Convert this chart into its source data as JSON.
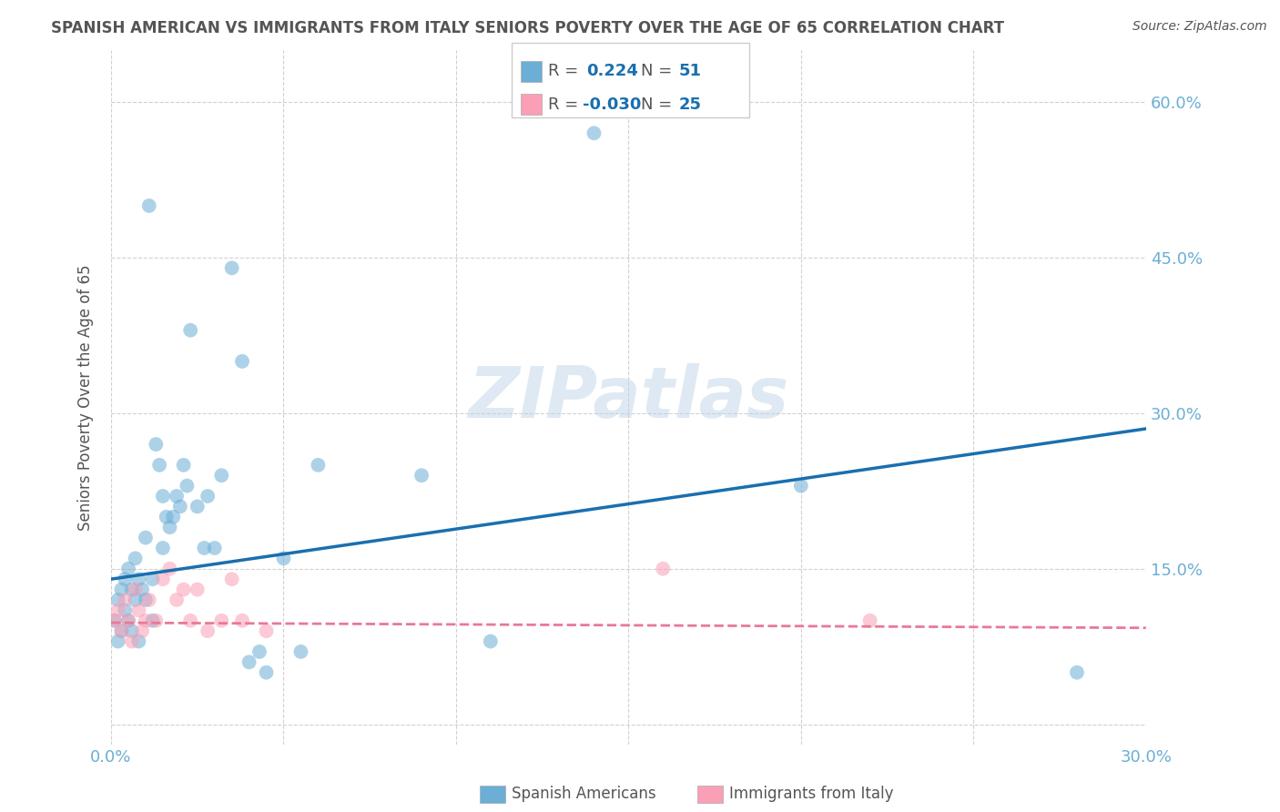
{
  "title": "SPANISH AMERICAN VS IMMIGRANTS FROM ITALY SENIORS POVERTY OVER THE AGE OF 65 CORRELATION CHART",
  "source": "Source: ZipAtlas.com",
  "ylabel": "Seniors Poverty Over the Age of 65",
  "x_min": 0.0,
  "x_max": 0.3,
  "y_min": -0.02,
  "y_max": 0.65,
  "x_ticks": [
    0.0,
    0.05,
    0.1,
    0.15,
    0.2,
    0.25,
    0.3
  ],
  "x_tick_labels": [
    "0.0%",
    "",
    "",
    "",
    "",
    "",
    "30.0%"
  ],
  "y_ticks": [
    0.0,
    0.15,
    0.3,
    0.45,
    0.6
  ],
  "y_tick_labels": [
    "",
    "15.0%",
    "30.0%",
    "45.0%",
    "60.0%"
  ],
  "background_color": "#ffffff",
  "grid_color": "#cccccc",
  "watermark_text": "ZIPatlas",
  "legend_r1": "0.224",
  "legend_n1": "51",
  "legend_r2": "-0.030",
  "legend_n2": "25",
  "blue_color": "#6baed6",
  "pink_color": "#fa9fb5",
  "line_blue": "#1a6faf",
  "line_pink": "#e87997",
  "title_color": "#555555",
  "axis_label_color": "#6baed6",
  "spanish_x": [
    0.001,
    0.002,
    0.002,
    0.003,
    0.003,
    0.004,
    0.004,
    0.005,
    0.005,
    0.006,
    0.006,
    0.007,
    0.007,
    0.008,
    0.008,
    0.009,
    0.01,
    0.01,
    0.011,
    0.012,
    0.012,
    0.013,
    0.014,
    0.015,
    0.015,
    0.016,
    0.017,
    0.018,
    0.019,
    0.02,
    0.021,
    0.022,
    0.023,
    0.025,
    0.027,
    0.028,
    0.03,
    0.032,
    0.035,
    0.038,
    0.04,
    0.043,
    0.045,
    0.05,
    0.055,
    0.06,
    0.09,
    0.11,
    0.14,
    0.2,
    0.28
  ],
  "spanish_y": [
    0.1,
    0.12,
    0.08,
    0.13,
    0.09,
    0.14,
    0.11,
    0.15,
    0.1,
    0.13,
    0.09,
    0.16,
    0.12,
    0.14,
    0.08,
    0.13,
    0.18,
    0.12,
    0.5,
    0.14,
    0.1,
    0.27,
    0.25,
    0.22,
    0.17,
    0.2,
    0.19,
    0.2,
    0.22,
    0.21,
    0.25,
    0.23,
    0.38,
    0.21,
    0.17,
    0.22,
    0.17,
    0.24,
    0.44,
    0.35,
    0.06,
    0.07,
    0.05,
    0.16,
    0.07,
    0.25,
    0.24,
    0.08,
    0.57,
    0.23,
    0.05
  ],
  "italy_x": [
    0.001,
    0.002,
    0.003,
    0.004,
    0.005,
    0.006,
    0.007,
    0.008,
    0.009,
    0.01,
    0.011,
    0.013,
    0.015,
    0.017,
    0.019,
    0.021,
    0.023,
    0.025,
    0.028,
    0.032,
    0.035,
    0.038,
    0.045,
    0.16,
    0.22
  ],
  "italy_y": [
    0.1,
    0.11,
    0.09,
    0.12,
    0.1,
    0.08,
    0.13,
    0.11,
    0.09,
    0.1,
    0.12,
    0.1,
    0.14,
    0.15,
    0.12,
    0.13,
    0.1,
    0.13,
    0.09,
    0.1,
    0.14,
    0.1,
    0.09,
    0.15,
    0.1
  ],
  "blue_line_x": [
    0.0,
    0.3
  ],
  "blue_line_y": [
    0.14,
    0.285
  ],
  "pink_line_x": [
    0.0,
    0.3
  ],
  "pink_line_y": [
    0.098,
    0.093
  ]
}
